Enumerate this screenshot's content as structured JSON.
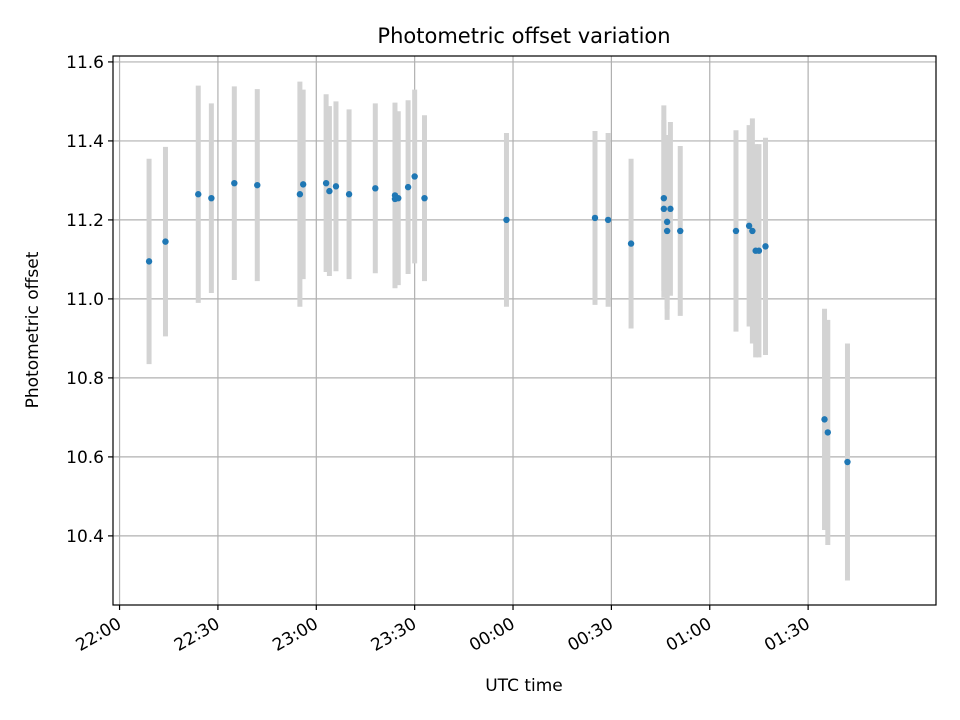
{
  "chart_data": {
    "type": "scatter",
    "title": "Photometric offset variation",
    "xlabel": "UTC time",
    "ylabel": "Photometric offset",
    "grid": true,
    "xlim": [
      "21:58",
      "02:09"
    ],
    "ylim": [
      10.225,
      11.615
    ],
    "x_ticks": [
      "22:00",
      "22:30",
      "23:00",
      "23:30",
      "00:00",
      "00:30",
      "01:00",
      "01:30"
    ],
    "y_ticks": [
      "10.4",
      "10.6",
      "10.8",
      "11.0",
      "11.2",
      "11.4",
      "11.6"
    ],
    "colors": {
      "point": "#1f77b4",
      "errorbar": "#d3d3d3",
      "grid": "#b0b0b0"
    },
    "points": [
      {
        "x": "22:09",
        "y": 11.095,
        "yerr": 0.26
      },
      {
        "x": "22:14",
        "y": 11.145,
        "yerr": 0.24
      },
      {
        "x": "22:24",
        "y": 11.265,
        "yerr": 0.275
      },
      {
        "x": "22:28",
        "y": 11.255,
        "yerr": 0.24
      },
      {
        "x": "22:35",
        "y": 11.293,
        "yerr": 0.245
      },
      {
        "x": "22:42",
        "y": 11.288,
        "yerr": 0.243
      },
      {
        "x": "22:55",
        "y": 11.265,
        "yerr": 0.285
      },
      {
        "x": "22:56",
        "y": 11.29,
        "yerr": 0.24
      },
      {
        "x": "23:03",
        "y": 11.293,
        "yerr": 0.225
      },
      {
        "x": "23:04",
        "y": 11.273,
        "yerr": 0.215
      },
      {
        "x": "23:06",
        "y": 11.285,
        "yerr": 0.215
      },
      {
        "x": "23:10",
        "y": 11.265,
        "yerr": 0.215
      },
      {
        "x": "23:18",
        "y": 11.28,
        "yerr": 0.215
      },
      {
        "x": "23:24",
        "y": 11.262,
        "yerr": 0.235
      },
      {
        "x": "23:24",
        "y": 11.253,
        "yerr": 0.225
      },
      {
        "x": "23:25",
        "y": 11.255,
        "yerr": 0.22
      },
      {
        "x": "23:28",
        "y": 11.283,
        "yerr": 0.22
      },
      {
        "x": "23:30",
        "y": 11.31,
        "yerr": 0.22
      },
      {
        "x": "23:33",
        "y": 11.255,
        "yerr": 0.21
      },
      {
        "x": "23:58",
        "y": 11.2,
        "yerr": 0.22
      },
      {
        "x": "00:25",
        "y": 11.205,
        "yerr": 0.22
      },
      {
        "x": "00:29",
        "y": 11.2,
        "yerr": 0.22
      },
      {
        "x": "00:36",
        "y": 11.14,
        "yerr": 0.215
      },
      {
        "x": "00:46",
        "y": 11.228,
        "yerr": 0.225
      },
      {
        "x": "00:46",
        "y": 11.255,
        "yerr": 0.235
      },
      {
        "x": "00:47",
        "y": 11.172,
        "yerr": 0.225
      },
      {
        "x": "00:47",
        "y": 11.195,
        "yerr": 0.22
      },
      {
        "x": "00:48",
        "y": 11.228,
        "yerr": 0.22
      },
      {
        "x": "00:51",
        "y": 11.172,
        "yerr": 0.215
      },
      {
        "x": "01:08",
        "y": 11.172,
        "yerr": 0.255
      },
      {
        "x": "01:12",
        "y": 11.185,
        "yerr": 0.255
      },
      {
        "x": "01:13",
        "y": 11.172,
        "yerr": 0.285
      },
      {
        "x": "01:14",
        "y": 11.122,
        "yerr": 0.27
      },
      {
        "x": "01:15",
        "y": 11.122,
        "yerr": 0.27
      },
      {
        "x": "01:17",
        "y": 11.133,
        "yerr": 0.275
      },
      {
        "x": "01:35",
        "y": 10.695,
        "yerr": 0.28
      },
      {
        "x": "01:36",
        "y": 10.662,
        "yerr": 0.285
      },
      {
        "x": "01:42",
        "y": 10.587,
        "yerr": 0.3
      }
    ]
  }
}
